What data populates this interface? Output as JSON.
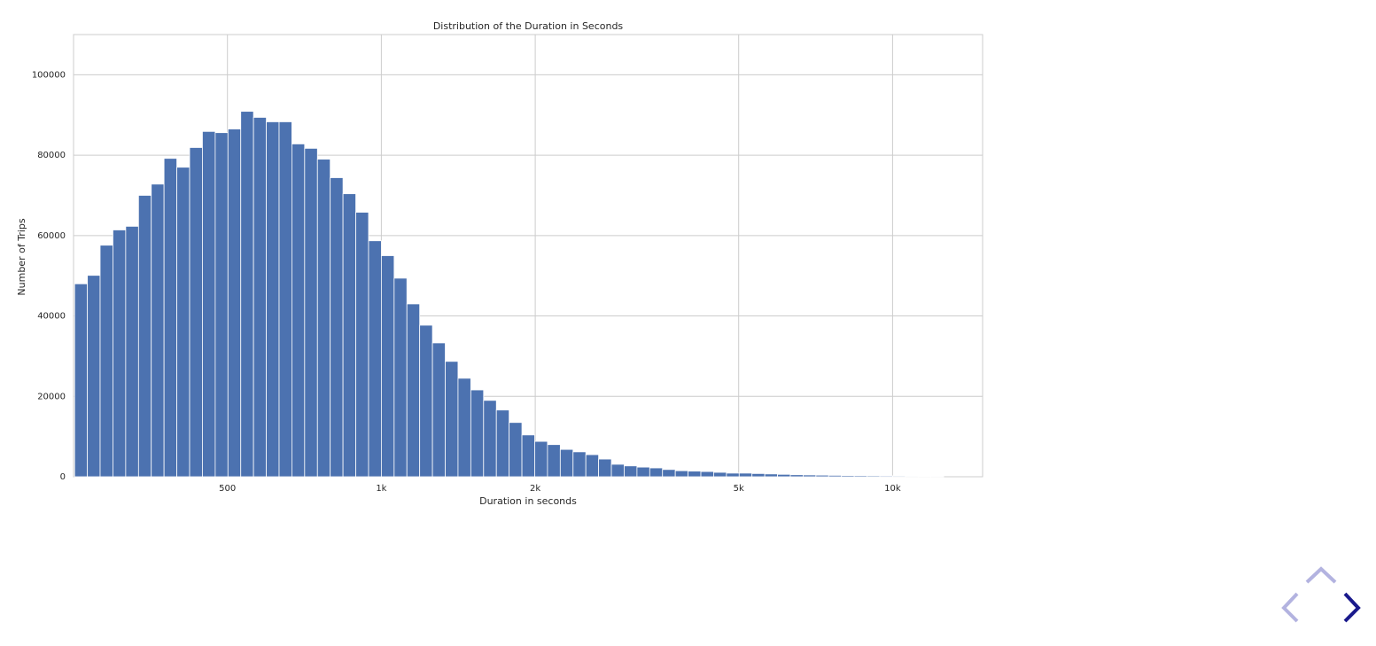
{
  "chart_data": {
    "type": "histogram",
    "title": "Distribution of the Duration in Seconds",
    "x_label": "Duration in seconds",
    "y_label": "Number of Trips",
    "bins": [
      251.2,
      266.1,
      281.8,
      298.5,
      316.2,
      335.0,
      354.8,
      375.8,
      398.1,
      421.7,
      446.7,
      473.2,
      501.2,
      530.9,
      562.3,
      595.7,
      631.0,
      668.3,
      707.9,
      749.9,
      794.3,
      841.4,
      891.3,
      944.1,
      1000,
      1059.3,
      1122.0,
      1188.5,
      1258.9,
      1333.5,
      1412.5,
      1496.2,
      1584.9,
      1678.8,
      1778.3,
      1883.6,
      1995.3,
      2113.5,
      2238.7,
      2371.4,
      2511.9,
      2660.7,
      2818.4,
      2985.4,
      3162.3,
      3349.7,
      3548.1,
      3758.4,
      3981.1,
      4217.0,
      4466.8,
      4731.5,
      5011.9,
      5308.8,
      5623.4,
      5956.6,
      6309.6,
      6683.4,
      7079.5,
      7498.9,
      7943.3,
      8414.0,
      8912.5,
      9440.6,
      10000,
      10592.5,
      11220.2,
      11885.0,
      12589.3
    ],
    "counts": [
      48000,
      50100,
      57600,
      61400,
      62300,
      70000,
      72800,
      79200,
      77000,
      81900,
      85900,
      85600,
      86500,
      90900,
      89400,
      88300,
      88300,
      82800,
      81700,
      79000,
      74400,
      70400,
      65800,
      58700,
      55000,
      49400,
      43000,
      37700,
      33300,
      28700,
      24500,
      21600,
      19000,
      16600,
      13500,
      10400,
      8800,
      8000,
      6800,
      6200,
      5500,
      4400,
      3100,
      2700,
      2400,
      2200,
      1800,
      1500,
      1400,
      1300,
      1100,
      900,
      900,
      800,
      700,
      600,
      500,
      450,
      400,
      350,
      300,
      280,
      250,
      220,
      200,
      180,
      150,
      120
    ],
    "color": "#4c72b0",
    "xscale": "log",
    "xlim": [
      250,
      15000
    ],
    "xticks": [
      500,
      {
        "value": 1000,
        "label": "1k"
      },
      {
        "value": 2000,
        "label": "2k"
      },
      {
        "value": 5000,
        "label": "5k"
      },
      {
        "value": 10000,
        "label": "10k"
      }
    ],
    "ylim": [
      0,
      110000
    ],
    "yticks": [
      0,
      20000,
      40000,
      60000,
      80000,
      100000
    ],
    "grid": true
  }
}
